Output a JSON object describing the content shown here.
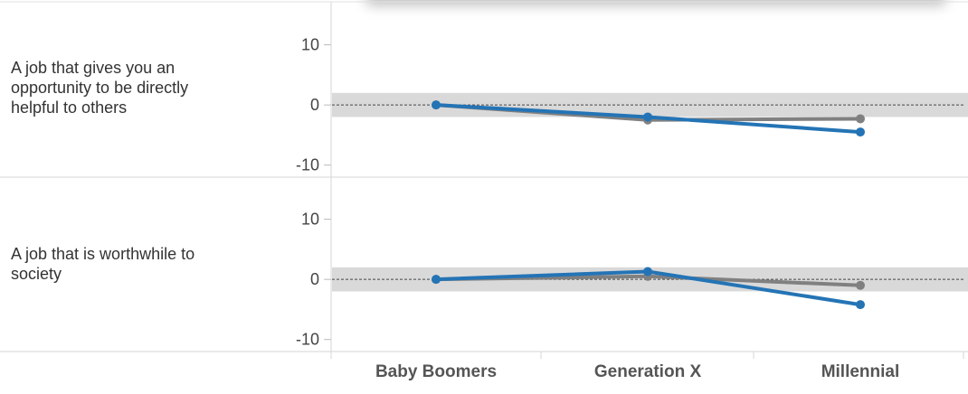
{
  "chart_data": {
    "type": "line",
    "categories": [
      "Baby Boomers",
      "Generation X",
      "Millennial"
    ],
    "ylim": [
      -12,
      17
    ],
    "yticks": [
      10,
      0,
      -10
    ],
    "reference_line": 0,
    "reference_band": [
      -2,
      2
    ],
    "colors": {
      "series_1": "#2474b5",
      "series_2": "#808080",
      "band": "#d9d9d9"
    },
    "panels": [
      {
        "label": "A job that gives you an\nopportunity to be directly\nhelpful to others",
        "series": [
          {
            "values": [
              0,
              -2.5,
              -2.3
            ],
            "color": "#808080"
          },
          {
            "values": [
              0,
              -2.0,
              -4.5
            ],
            "color": "#2474b5"
          }
        ]
      },
      {
        "label": "A job that is worthwhile to\nsociety",
        "series": [
          {
            "values": [
              0,
              0.5,
              -1.0
            ],
            "color": "#808080"
          },
          {
            "values": [
              0,
              1.3,
              -4.2
            ],
            "color": "#2474b5"
          }
        ]
      }
    ]
  }
}
